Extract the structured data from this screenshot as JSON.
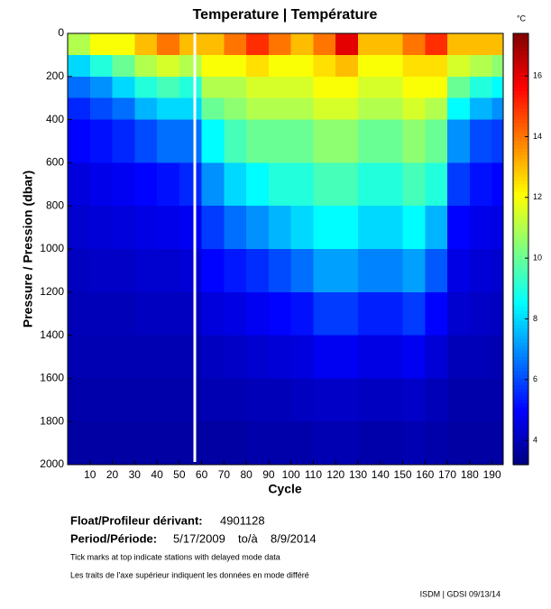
{
  "chart_data": {
    "type": "heatmap",
    "title": "Temperature | Température",
    "xlabel": "Cycle",
    "ylabel": "Pressure / Pression (dbar)",
    "colorbar_label": "°C",
    "colormap": "jet",
    "xlim": [
      0,
      195
    ],
    "ylim": [
      0,
      2000
    ],
    "y_inverted": true,
    "clim": [
      3.2,
      17.4
    ],
    "xticks": [
      10,
      20,
      30,
      40,
      50,
      60,
      70,
      80,
      90,
      100,
      110,
      120,
      130,
      140,
      150,
      160,
      170,
      180,
      190
    ],
    "yticks": [
      0,
      200,
      400,
      600,
      800,
      1000,
      1200,
      1400,
      1600,
      1800,
      2000
    ],
    "cticks": [
      4,
      6,
      8,
      10,
      12,
      14,
      16
    ],
    "x_bins": [
      0,
      10,
      20,
      30,
      40,
      50,
      60,
      70,
      80,
      90,
      100,
      110,
      120,
      130,
      140,
      150,
      160,
      170,
      180,
      190,
      195
    ],
    "y_bins": [
      0,
      100,
      200,
      300,
      400,
      600,
      800,
      1000,
      1200,
      1400,
      1600,
      1800,
      2000
    ],
    "z": [
      [
        11,
        8,
        6.5,
        5.5,
        5,
        4.5,
        4.3,
        4.1,
        4,
        3.9,
        3.8,
        3.7
      ],
      [
        12,
        9,
        7,
        6,
        5.2,
        4.7,
        4.4,
        4.2,
        4,
        3.9,
        3.8,
        3.7
      ],
      [
        12,
        10,
        8,
        6.5,
        5.5,
        4.8,
        4.5,
        4.2,
        4,
        3.9,
        3.8,
        3.7
      ],
      [
        13,
        11,
        9,
        7.5,
        6,
        5,
        4.6,
        4.3,
        4.1,
        3.9,
        3.8,
        3.7
      ],
      [
        14,
        11.5,
        9.5,
        8,
        6.5,
        5.2,
        4.7,
        4.3,
        4.1,
        3.9,
        3.8,
        3.7
      ],
      [
        13,
        11,
        9,
        8,
        6.5,
        5.5,
        4.8,
        4.4,
        4.1,
        3.9,
        3.8,
        3.7
      ],
      [
        13,
        12,
        11,
        10,
        8.5,
        7,
        5.8,
        5,
        4.5,
        4.1,
        3.9,
        3.7
      ],
      [
        14,
        12,
        11,
        10.5,
        9.5,
        8,
        6.5,
        5.3,
        4.6,
        4.2,
        3.9,
        3.7
      ],
      [
        15,
        12.5,
        11.5,
        11,
        10,
        8.5,
        7,
        5.6,
        4.8,
        4.3,
        4,
        3.8
      ],
      [
        14,
        12,
        11.5,
        11,
        10,
        9,
        7.5,
        6,
        5,
        4.4,
        4,
        3.8
      ],
      [
        13,
        12,
        11.5,
        11,
        10,
        9,
        8,
        6.5,
        5.2,
        4.5,
        4.1,
        3.8
      ],
      [
        14,
        12.5,
        12,
        11.5,
        10.5,
        9.5,
        8.5,
        7.2,
        5.8,
        4.8,
        4.2,
        3.9
      ],
      [
        16,
        13,
        12,
        11.5,
        10.5,
        9.5,
        8.5,
        7.2,
        5.8,
        4.8,
        4.2,
        3.9
      ],
      [
        13,
        12,
        11.5,
        11,
        10,
        9,
        8,
        6.8,
        5.4,
        4.6,
        4.1,
        3.8
      ],
      [
        13,
        12,
        11.5,
        11,
        10,
        9,
        8,
        6.8,
        5.4,
        4.6,
        4.1,
        3.8
      ],
      [
        14,
        12.5,
        12,
        11.5,
        10.5,
        9.5,
        8.5,
        7.2,
        5.8,
        4.8,
        4.2,
        3.9
      ],
      [
        15,
        12.5,
        12,
        11,
        10,
        9,
        7.5,
        6.2,
        5,
        4.4,
        4,
        3.8
      ],
      [
        13,
        11.5,
        10,
        8.5,
        7,
        5.8,
        5,
        4.6,
        4.3,
        4,
        3.8,
        3.7
      ],
      [
        13,
        11,
        9,
        7.5,
        6,
        5.2,
        4.7,
        4.4,
        4.2,
        4,
        3.8,
        3.7
      ],
      [
        13,
        10.5,
        8.5,
        7,
        5.8,
        5,
        4.6,
        4.3,
        4.1,
        3.9,
        3.8,
        3.7
      ]
    ]
  },
  "footer": {
    "float_label": "Float/Profileur dérivant:",
    "float_id": "4901128",
    "period_label": "Period/Période:",
    "period_start": "5/17/2009",
    "period_sep": "to/à",
    "period_end": "8/9/2014",
    "note_en": "Tick marks at top indicate stations with delayed mode data",
    "note_fr": "Les traits de l'axe supérieur indiquent les données en mode différé",
    "credit": "ISDM | GDSI  09/13/14"
  }
}
